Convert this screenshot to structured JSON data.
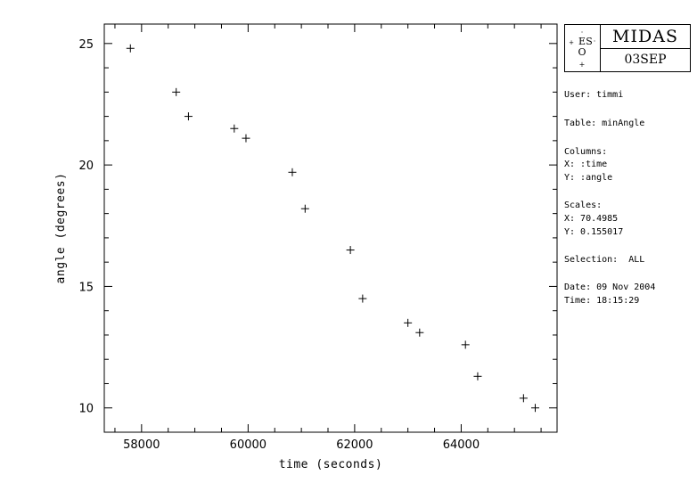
{
  "chart_data": {
    "type": "scatter",
    "marker": "+",
    "xlabel": "time (seconds)",
    "ylabel": "angle (degrees)",
    "xlim": [
      57300,
      65800
    ],
    "ylim": [
      9.0,
      25.8
    ],
    "xticks": [
      {
        "value": 58000,
        "label": "58000"
      },
      {
        "value": 60000,
        "label": "60000"
      },
      {
        "value": 62000,
        "label": "62000"
      },
      {
        "value": 64000,
        "label": "64000"
      }
    ],
    "yticks": [
      {
        "value": 10,
        "label": "10"
      },
      {
        "value": 15,
        "label": "15"
      },
      {
        "value": 20,
        "label": "20"
      },
      {
        "value": 25,
        "label": "25"
      }
    ],
    "x": [
      57790,
      58650,
      58880,
      59740,
      59960,
      60830,
      61070,
      61920,
      62150,
      63000,
      63220,
      64080,
      64310,
      65170,
      65390
    ],
    "y": [
      24.8,
      23.0,
      22.0,
      21.5,
      21.1,
      19.7,
      18.2,
      16.5,
      14.5,
      13.5,
      13.1,
      12.6,
      11.3,
      10.4,
      10.0
    ]
  },
  "logo": {
    "title": "MIDAS",
    "date": "03SEP",
    "emblem": "ESO"
  },
  "info": {
    "user": "User: timmi",
    "table": "Table: minAngle",
    "columns_header": "Columns:",
    "columns_x": "X: :time",
    "columns_y": "Y: :angle",
    "scales_header": "Scales:",
    "scales_x": "X: 70.4985",
    "scales_y": "Y: 0.155017",
    "selection": "Selection:  ALL",
    "date": "Date: 09 Nov 2004",
    "time": "Time: 18:15:29"
  }
}
